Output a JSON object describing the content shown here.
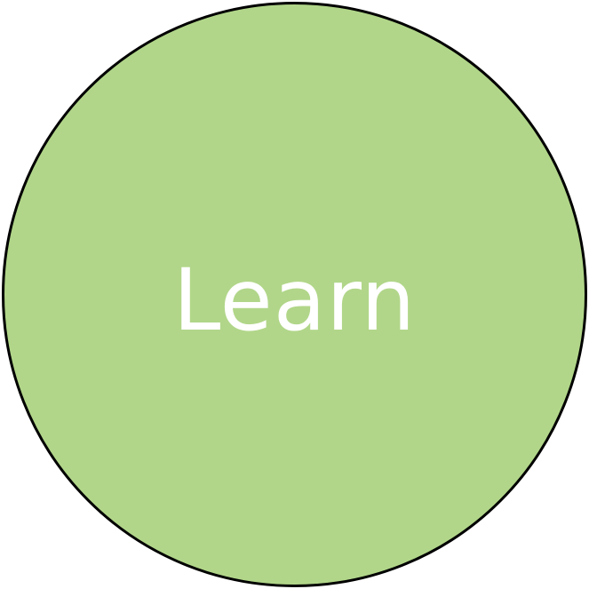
{
  "node": {
    "label": "Learn",
    "fill_color": "#b1d689",
    "border_color": "#000000",
    "text_color": "#ffffff",
    "shape": "circle"
  }
}
